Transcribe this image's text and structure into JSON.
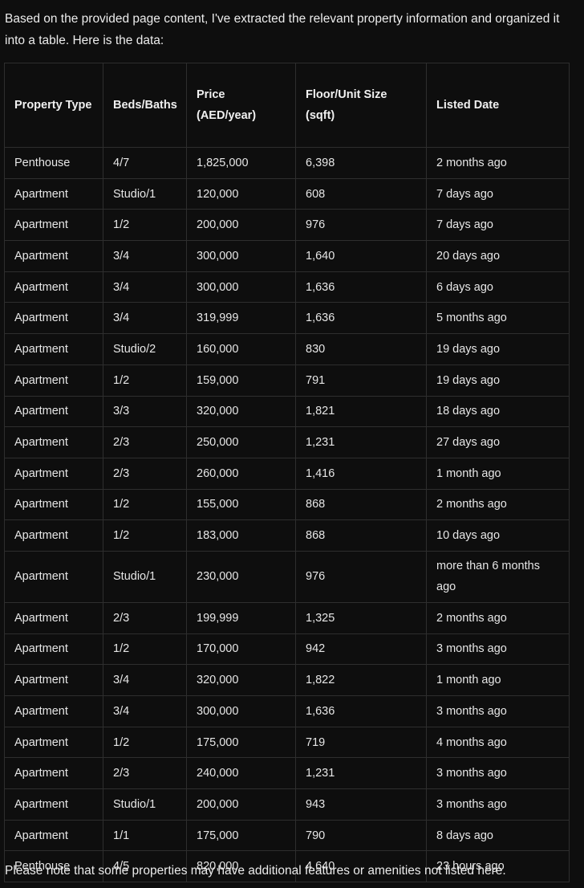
{
  "intro_text": "Based on the provided page content, I've extracted the relevant property information and organized it into a table. Here is the data:",
  "table": {
    "headers": [
      "Property Type",
      "Beds/Baths",
      "Price (AED/year)",
      "Floor/Unit Size (sqft)",
      "Listed Date"
    ],
    "rows": [
      [
        "Penthouse",
        "4/7",
        "1,825,000",
        "6,398",
        "2 months ago"
      ],
      [
        "Apartment",
        "Studio/1",
        "120,000",
        "608",
        "7 days ago"
      ],
      [
        "Apartment",
        "1/2",
        "200,000",
        "976",
        "7 days ago"
      ],
      [
        "Apartment",
        "3/4",
        "300,000",
        "1,640",
        "20 days ago"
      ],
      [
        "Apartment",
        "3/4",
        "300,000",
        "1,636",
        "6 days ago"
      ],
      [
        "Apartment",
        "3/4",
        "319,999",
        "1,636",
        "5 months ago"
      ],
      [
        "Apartment",
        "Studio/2",
        "160,000",
        "830",
        "19 days ago"
      ],
      [
        "Apartment",
        "1/2",
        "159,000",
        "791",
        "19 days ago"
      ],
      [
        "Apartment",
        "3/3",
        "320,000",
        "1,821",
        "18 days ago"
      ],
      [
        "Apartment",
        "2/3",
        "250,000",
        "1,231",
        "27 days ago"
      ],
      [
        "Apartment",
        "2/3",
        "260,000",
        "1,416",
        "1 month ago"
      ],
      [
        "Apartment",
        "1/2",
        "155,000",
        "868",
        "2 months ago"
      ],
      [
        "Apartment",
        "1/2",
        "183,000",
        "868",
        "10 days ago"
      ],
      [
        "Apartment",
        "Studio/1",
        "230,000",
        "976",
        "more than 6 months ago"
      ],
      [
        "Apartment",
        "2/3",
        "199,999",
        "1,325",
        "2 months ago"
      ],
      [
        "Apartment",
        "1/2",
        "170,000",
        "942",
        "3 months ago"
      ],
      [
        "Apartment",
        "3/4",
        "320,000",
        "1,822",
        "1 month ago"
      ],
      [
        "Apartment",
        "3/4",
        "300,000",
        "1,636",
        "3 months ago"
      ],
      [
        "Apartment",
        "1/2",
        "175,000",
        "719",
        "4 months ago"
      ],
      [
        "Apartment",
        "2/3",
        "240,000",
        "1,231",
        "3 months ago"
      ],
      [
        "Apartment",
        "Studio/1",
        "200,000",
        "943",
        "3 months ago"
      ],
      [
        "Apartment",
        "1/1",
        "175,000",
        "790",
        "8 days ago"
      ],
      [
        "Penthouse",
        "4/5",
        "820,000",
        "4,640",
        "23 hours ago"
      ]
    ]
  },
  "outro_text": "Please note that some properties may have additional features or amenities not listed here."
}
